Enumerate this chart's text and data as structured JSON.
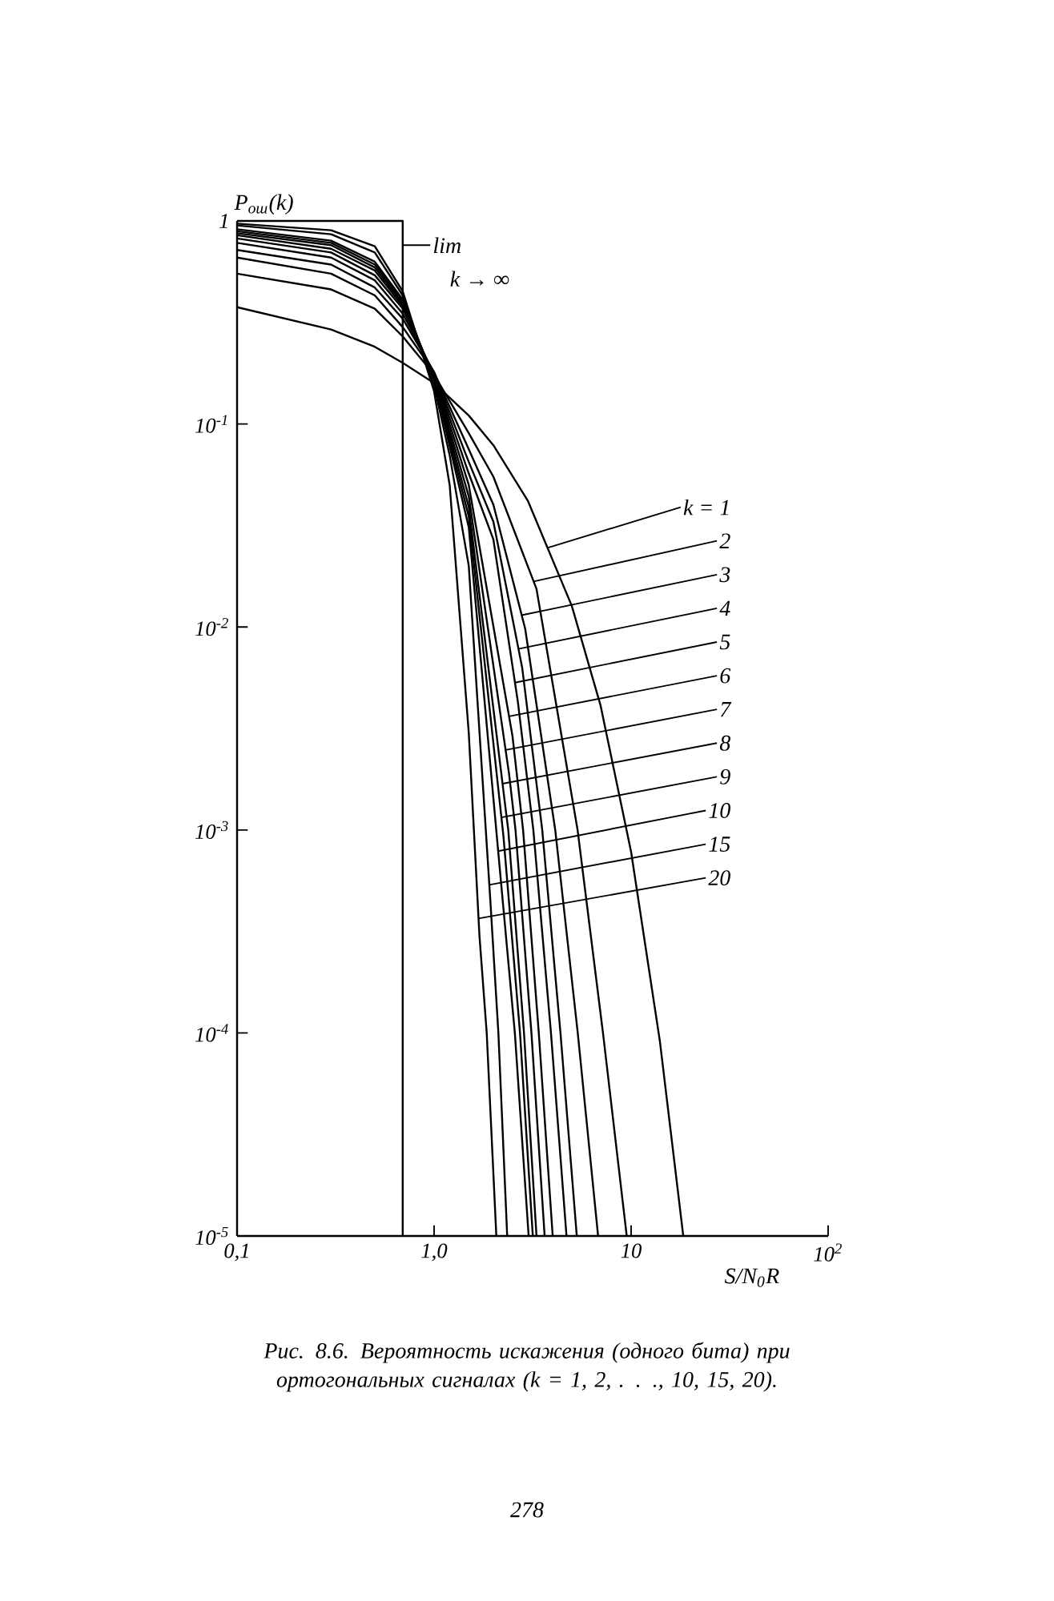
{
  "chart_data": {
    "type": "line",
    "xlabel": "S/N$_{0}$R",
    "ylabel": "P$_{ош}$(k)",
    "log": "xy",
    "xlim": [
      0.1,
      100
    ],
    "ylim": [
      1e-05,
      1
    ],
    "xticks": [
      {
        "value": 0.1,
        "label": "0,1"
      },
      {
        "value": 1,
        "label": "1,0"
      },
      10,
      {
        "value": 100,
        "label": "10$^{2}$"
      }
    ],
    "yticks": [
      {
        "value": 1e-05,
        "label": "10$^{-5}$"
      },
      {
        "value": 0.0001,
        "label": "10$^{-4}$"
      },
      {
        "value": 0.001,
        "label": "10$^{-3}$"
      },
      {
        "value": 0.01,
        "label": "10$^{-2}$"
      },
      {
        "value": 0.1,
        "label": "10$^{-1}$"
      },
      1
    ],
    "series": [
      {
        "name": "k = 1",
        "color": "#000000",
        "x": [
          0.1,
          0.3,
          0.5,
          0.693,
          1,
          1.5,
          2,
          3,
          5,
          7,
          10,
          14,
          18.4
        ],
        "values": [
          0.376,
          0.292,
          0.24,
          0.2,
          0.159,
          0.11,
          0.0786,
          0.0416,
          0.0127,
          0.0041,
          0.00078,
          9.1e-05,
          1e-05
        ]
      },
      {
        "name": "2",
        "color": "#000000",
        "x": [
          0.1,
          0.3,
          0.5,
          0.693,
          1,
          1.5,
          2,
          3.31,
          5.35,
          7.2,
          9.5
        ],
        "values": [
          0.55,
          0.46,
          0.37,
          0.27,
          0.175,
          0.09,
          0.055,
          0.0154,
          0.001,
          0.0001,
          1e-05
        ]
      },
      {
        "name": "3",
        "color": "#000000",
        "x": [
          0.1,
          0.3,
          0.5,
          0.693,
          1,
          1.5,
          2,
          2.9,
          4.12,
          5.36,
          6.8
        ],
        "values": [
          0.66,
          0.55,
          0.43,
          0.3,
          0.18,
          0.075,
          0.04,
          0.0098,
          0.001,
          0.0001,
          1e-05
        ]
      },
      {
        "name": "4",
        "color": "#000000",
        "x": [
          0.1,
          0.3,
          0.5,
          0.693,
          1,
          1.5,
          2,
          2.8,
          3.54,
          4.38,
          5.3
        ],
        "values": [
          0.72,
          0.61,
          0.47,
          0.33,
          0.18,
          0.065,
          0.033,
          0.0063,
          0.001,
          0.0001,
          1e-05
        ]
      },
      {
        "name": "5",
        "color": "#000000",
        "x": [
          0.1,
          0.3,
          0.5,
          0.693,
          1,
          1.5,
          2,
          2.66,
          3.19,
          3.92,
          4.7
        ],
        "values": [
          0.78,
          0.66,
          0.51,
          0.35,
          0.178,
          0.057,
          0.027,
          0.0043,
          0.001,
          0.0001,
          1e-05
        ]
      },
      {
        "name": "6",
        "color": "#000000",
        "x": [
          0.1,
          0.3,
          0.5,
          0.693,
          1,
          1.5,
          2.5,
          2.83,
          3.4,
          4.0
        ],
        "values": [
          0.82,
          0.7,
          0.54,
          0.37,
          0.175,
          0.05,
          0.0029,
          0.001,
          0.0001,
          1e-05
        ]
      },
      {
        "name": "7",
        "color": "#000000",
        "x": [
          0.1,
          0.3,
          0.5,
          0.693,
          1,
          1.5,
          2.4,
          2.59,
          3.12,
          3.64
        ],
        "values": [
          0.85,
          0.73,
          0.57,
          0.38,
          0.172,
          0.044,
          0.0019,
          0.001,
          0.0001,
          1e-05
        ]
      },
      {
        "name": "8",
        "color": "#000000",
        "x": [
          0.1,
          0.3,
          0.5,
          0.693,
          1,
          1.5,
          2.3,
          2.38,
          2.86,
          3.31
        ],
        "values": [
          0.87,
          0.76,
          0.59,
          0.39,
          0.17,
          0.039,
          0.0013,
          0.001,
          0.0001,
          1e-05
        ]
      },
      {
        "name": "9",
        "color": "#000000",
        "x": [
          0.1,
          0.3,
          0.5,
          0.693,
          1,
          1.5,
          2.25,
          2.73,
          3.17
        ],
        "values": [
          0.89,
          0.78,
          0.61,
          0.4,
          0.167,
          0.035,
          0.00093,
          0.0001,
          1e-05
        ]
      },
      {
        "name": "10",
        "color": "#000000",
        "x": [
          0.1,
          0.3,
          0.5,
          0.693,
          1,
          1.5,
          2.15,
          2.57,
          3.02
        ],
        "values": [
          0.91,
          0.8,
          0.63,
          0.41,
          0.165,
          0.031,
          0.00066,
          0.0001,
          1e-05
        ]
      },
      {
        "name": "15",
        "color": "#000000",
        "x": [
          0.1,
          0.3,
          0.5,
          0.693,
          1,
          1.2,
          1.5,
          1.93,
          2.12,
          2.35
        ],
        "values": [
          0.95,
          0.86,
          0.7,
          0.43,
          0.155,
          0.07,
          0.02,
          0.00045,
          0.0001,
          1e-05
        ]
      },
      {
        "name": "20",
        "color": "#000000",
        "x": [
          0.1,
          0.3,
          0.5,
          0.693,
          1,
          1.2,
          1.5,
          1.7,
          1.85,
          2.07
        ],
        "values": [
          0.97,
          0.9,
          0.75,
          0.45,
          0.145,
          0.05,
          0.003,
          0.0003,
          0.0001,
          1e-05
        ]
      },
      {
        "name": "lim",
        "type": "step",
        "color": "#000000",
        "x": [
          0.1,
          0.693,
          0.693
        ],
        "values": [
          1,
          1,
          1e-05
        ]
      }
    ],
    "annotations": [
      "k → ∞",
      "Рис. 8.6. Вероятность искажения (одного бита) при ортогональных сигналах (k = 1, 2, . . ., 10, 15, 20).",
      "278"
    ]
  }
}
